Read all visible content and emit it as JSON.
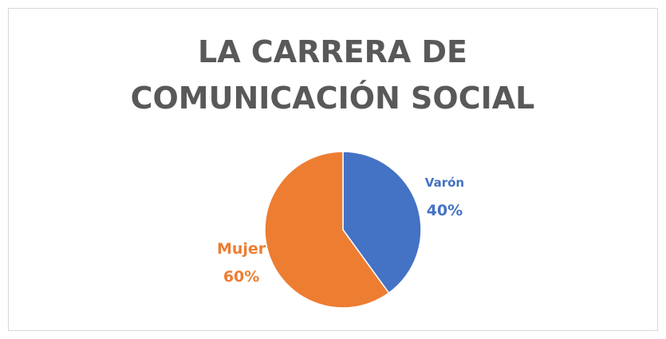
{
  "chart_data": {
    "type": "pie",
    "title": "LA CARRERA DE COMUNICACIÓN SOCIAL",
    "categories": [
      "Varón",
      "Mujer"
    ],
    "values": [
      40,
      60
    ],
    "value_labels": [
      "40%",
      "60%"
    ],
    "colors": [
      "#4472c4",
      "#ed7d31"
    ]
  }
}
